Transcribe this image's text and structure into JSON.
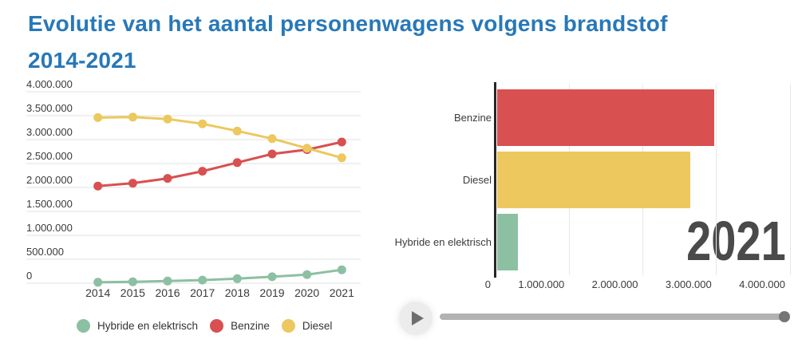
{
  "title": {
    "line1": "Evolutie van het aantal personenwagens volgens brandstof",
    "line2": "2014-2021"
  },
  "colors": {
    "title": "#2878b8",
    "benzine": "#d95050",
    "diesel": "#ecc85e",
    "hybride_en_elektrisch": "#8cc0a2",
    "year_label": "#4a4a4a",
    "axis_text": "#3a3a3a",
    "gridline": "#e0e0e0"
  },
  "chart_data": [
    {
      "type": "line",
      "x": [
        2014,
        2015,
        2016,
        2017,
        2018,
        2019,
        2020,
        2021
      ],
      "series": [
        {
          "name": "Hybride en elektrisch",
          "color": "#8cc0a2",
          "values": [
            20000,
            30000,
            45000,
            65000,
            95000,
            135000,
            180000,
            280000
          ]
        },
        {
          "name": "Benzine",
          "color": "#d95050",
          "values": [
            2030000,
            2090000,
            2190000,
            2340000,
            2520000,
            2700000,
            2790000,
            2950000
          ]
        },
        {
          "name": "Diesel",
          "color": "#ecc85e",
          "values": [
            3460000,
            3470000,
            3430000,
            3330000,
            3180000,
            3020000,
            2820000,
            2620000
          ]
        }
      ],
      "ylim": [
        0,
        4000000
      ],
      "ytick_step": 500000,
      "ytick_labels": [
        "0",
        "500.000",
        "1.000.000",
        "1.500.000",
        "2.000.000",
        "2.500.000",
        "3.000.000",
        "3.500.000",
        "4.000.000"
      ],
      "grid": true,
      "legend_position": "bottom"
    },
    {
      "type": "bar",
      "orientation": "horizontal",
      "categories": [
        "Benzine",
        "Diesel",
        "Hybride en elektrisch"
      ],
      "values": [
        2950000,
        2620000,
        280000
      ],
      "bar_colors": [
        "#d95050",
        "#ecc85e",
        "#8cc0a2"
      ],
      "xlim": [
        0,
        4000000
      ],
      "xtick_labels": [
        "0",
        "1.000.000",
        "2.000.000",
        "3.000.000",
        "4.000.000"
      ],
      "year_label": "2021"
    }
  ],
  "controls": {
    "play_icon": "play",
    "slider_position": 0.99
  }
}
